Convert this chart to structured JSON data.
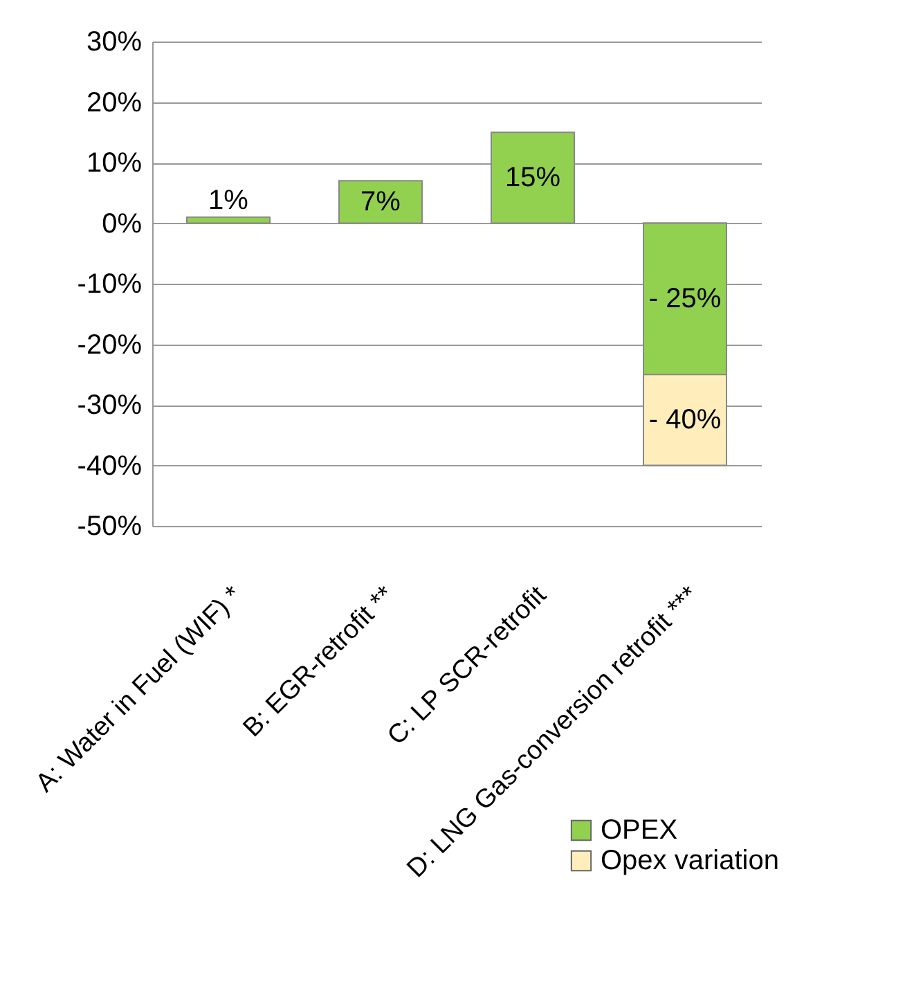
{
  "chart_data": {
    "type": "bar",
    "categories": [
      "A: Water in Fuel (WIF) *",
      "B: EGR-retrofit **",
      "C: LP SCR-retrofit",
      "D: LNG Gas-conversion retrofit ***"
    ],
    "series": [
      {
        "name": "OPEX",
        "color": "#92d050",
        "values": [
          1,
          7,
          15,
          -25
        ],
        "value_labels": [
          "1%",
          "7%",
          "15%",
          "- 25%"
        ]
      },
      {
        "name": "Opex variation",
        "color": "#ffeebb",
        "values": [
          null,
          null,
          null,
          -40
        ],
        "value_labels": [
          null,
          null,
          null,
          "- 40%"
        ]
      }
    ],
    "ylim": [
      -50,
      30
    ],
    "yticks": [
      {
        "value": -50,
        "label": "-50%"
      },
      {
        "value": -40,
        "label": "-40%"
      },
      {
        "value": -30,
        "label": "-30%"
      },
      {
        "value": -20,
        "label": "-20%"
      },
      {
        "value": -10,
        "label": "-10%"
      },
      {
        "value": 0,
        "label": "0%"
      },
      {
        "value": 10,
        "label": "10%"
      },
      {
        "value": 20,
        "label": "20%"
      },
      {
        "value": 30,
        "label": "30%"
      }
    ],
    "grid": "y",
    "legend": "bottom right"
  }
}
